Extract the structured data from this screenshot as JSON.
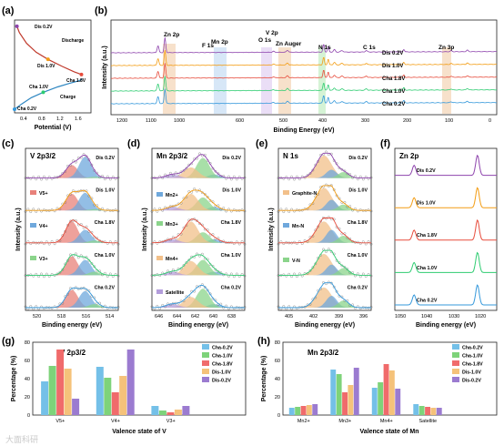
{
  "figure": {
    "panel_labels": [
      "(a)",
      "(b)",
      "(c)",
      "(d)",
      "(e)",
      "(f)",
      "(g)",
      "(h)"
    ],
    "watermark": "大面科研"
  },
  "colors": {
    "Dis 0.2V": "#8e44ad",
    "Dis 1.0V": "#f39c12",
    "Cha 1.8V": "#e74c3c",
    "Cha 1.0V": "#2ecc71",
    "Cha 0.2V": "#3498db",
    "Cha-0.2V": "#74c0e8",
    "Cha-1.0V": "#7ed37a",
    "Cha-1.8V": "#f06b6b",
    "Dis-1.0V": "#f5c27a",
    "Dis-0.2V": "#9b7bd0"
  },
  "chart_data": [
    {
      "panel": "(a)",
      "type": "line",
      "xlabel": "Potential (V)",
      "xticks": [
        "0.4",
        "0.8",
        "1.2",
        "1.6"
      ],
      "xlim": [
        0.2,
        1.8
      ],
      "annotations": [
        "Dis 0.2V",
        "Discharge",
        "Dis 1.0V",
        "Cha 1.8V",
        "Cha 1.0V",
        "Charge",
        "Cha 0.2V"
      ],
      "series": [
        {
          "name": "Discharge",
          "points": [
            [
              0.25,
              0.95
            ],
            [
              0.3,
              0.88
            ],
            [
              0.45,
              0.76
            ],
            [
              0.65,
              0.66
            ],
            [
              0.9,
              0.58
            ],
            [
              1.2,
              0.5
            ],
            [
              1.45,
              0.44
            ],
            [
              1.6,
              0.41
            ]
          ]
        },
        {
          "name": "Charge",
          "points": [
            [
              0.2,
              0.02
            ],
            [
              0.35,
              0.08
            ],
            [
              0.55,
              0.15
            ],
            [
              0.8,
              0.21
            ],
            [
              1.1,
              0.27
            ],
            [
              1.35,
              0.31
            ],
            [
              1.55,
              0.34
            ],
            [
              1.62,
              0.36
            ]
          ]
        }
      ]
    },
    {
      "panel": "(b)",
      "type": "line",
      "xlabel": "Binding Energy (eV)",
      "ylabel": "Intensity (a.u.)",
      "xticks": [
        "1200",
        "1100",
        "1000",
        "600",
        "500",
        "400",
        "300",
        "200",
        "100",
        "0"
      ],
      "peaks": [
        "Zn 2p",
        "Mn 2p",
        "F 1s",
        "O 1s",
        "V 2p",
        "Zn Auger",
        "N 1s",
        "C 1s",
        "Zn 3p"
      ],
      "series": [
        "Dis  0.2V",
        "Dis  1.0V",
        "Cha 1.8V",
        "Cha 1.0V",
        "Cha 0.2V"
      ]
    },
    {
      "panel": "(c)",
      "type": "line",
      "title": "V 2p3/2",
      "xlabel": "Binding energy (eV)",
      "ylabel": "Intensity (a.u.)",
      "xticks": [
        "520",
        "518",
        "516",
        "514"
      ],
      "xlim": [
        520.5,
        513.5
      ],
      "legend": [
        "V5+",
        "V4+",
        "V3+"
      ],
      "rows": [
        "Dis 0.2V",
        "Dis 1.0V",
        "Cha 1.8V",
        "Cha 1.0V",
        "Cha 0.2V"
      ],
      "components": [
        {
          "name": "V5+",
          "color": "#e8817a",
          "center": 517.0,
          "width": 0.65
        },
        {
          "name": "V4+",
          "color": "#6fa8dc",
          "center": 516.0,
          "width": 0.65
        },
        {
          "name": "V3+",
          "color": "#8bd48b",
          "center": 515.3,
          "width": 0.6
        }
      ],
      "amplitudes": [
        [
          0.55,
          0.9,
          0.05
        ],
        [
          0.7,
          0.75,
          0.05
        ],
        [
          0.9,
          0.55,
          0.1
        ],
        [
          0.8,
          0.65,
          0.15
        ],
        [
          0.75,
          0.7,
          0.15
        ]
      ]
    },
    {
      "panel": "(d)",
      "type": "line",
      "title": "Mn 2p3/2",
      "xlabel": "Binding energy (eV)",
      "ylabel": "Intensity (a.u.)",
      "xticks": [
        "646",
        "644",
        "642",
        "640",
        "638"
      ],
      "xlim": [
        647,
        637
      ],
      "legend": [
        "Mn2+",
        "Mn3+",
        "Mn4+",
        "Satellite"
      ],
      "rows": [
        "Dis 0.2V",
        "Dis 1.0V",
        "Cha 1.8V",
        "Cha 1.0V",
        "Cha 0.2V"
      ],
      "components": [
        {
          "name": "Mn2+",
          "color": "#6fa8dc",
          "center": 640.3,
          "width": 0.9
        },
        {
          "name": "Mn3+",
          "color": "#8bd48b",
          "center": 641.5,
          "width": 1.0
        },
        {
          "name": "Mn4+",
          "color": "#f2c08a",
          "center": 642.8,
          "width": 1.1
        },
        {
          "name": "Satellite",
          "color": "#b39ddb",
          "center": 644.8,
          "width": 1.0
        }
      ],
      "amplitudes": [
        [
          0.15,
          0.85,
          0.45,
          0.15
        ],
        [
          0.15,
          0.55,
          0.7,
          0.15
        ],
        [
          0.15,
          0.45,
          0.9,
          0.15
        ],
        [
          0.15,
          0.65,
          0.6,
          0.15
        ],
        [
          0.15,
          0.8,
          0.45,
          0.15
        ]
      ]
    },
    {
      "panel": "(e)",
      "type": "line",
      "title": "N 1s",
      "xlabel": "Binding energy (eV)",
      "ylabel": "Intensity (a.u.)",
      "xticks": [
        "405",
        "402",
        "399",
        "396"
      ],
      "xlim": [
        406,
        395
      ],
      "legend": [
        "Graphite-N",
        "Mn-N",
        "V-N"
      ],
      "rows": [
        "Dis 0.2V",
        "Dis 1.0V",
        "Cha 1.8V",
        "Cha 1.0V",
        "Cha 0.2V"
      ],
      "components": [
        {
          "name": "Graphite-N",
          "color": "#f2c08a",
          "center": 400.6,
          "width": 1.3
        },
        {
          "name": "Mn-N",
          "color": "#6fa8dc",
          "center": 399.7,
          "width": 0.9
        },
        {
          "name": "V-N",
          "color": "#8bd48b",
          "center": 398.3,
          "width": 0.9
        }
      ],
      "amplitudes": [
        [
          0.95,
          0.35,
          0.25
        ],
        [
          0.95,
          0.45,
          0.25
        ],
        [
          0.9,
          0.55,
          0.3
        ],
        [
          0.9,
          0.45,
          0.3
        ],
        [
          0.85,
          0.5,
          0.3
        ]
      ]
    },
    {
      "panel": "(f)",
      "type": "line",
      "title": "Zn 2p",
      "xlabel": "Binding energy (eV)",
      "xticks": [
        "1050",
        "1040",
        "1030",
        "1020"
      ],
      "xlim": [
        1052,
        1015
      ],
      "rows": [
        "Dis 0.2V",
        "Dis 1.0V",
        "Cha 1.8V",
        "Cha 1.0V",
        "Cha 0.2V"
      ],
      "peaks": [
        {
          "center": 1045.0,
          "amp": 0.5
        },
        {
          "center": 1022.0,
          "amp": 1.0
        }
      ]
    },
    {
      "panel": "(g)",
      "type": "bar",
      "title": "V 2p3/2",
      "xlabel": "Valence state of V",
      "ylabel": "Percentage (%)",
      "ylim": [
        0,
        80
      ],
      "yticks": [
        0,
        20,
        40,
        60,
        80
      ],
      "categories": [
        "V5+",
        "V4+",
        "V3+"
      ],
      "legend_position": "top-right",
      "series": [
        {
          "name": "Cha-0.2V",
          "values": [
            37,
            53,
            10
          ]
        },
        {
          "name": "Cha-1.0V",
          "values": [
            54,
            41,
            5
          ]
        },
        {
          "name": "Cha-1.8V",
          "values": [
            72,
            25,
            3
          ]
        },
        {
          "name": "Dis-1.0V",
          "values": [
            51,
            43,
            6
          ]
        },
        {
          "name": "Dis-0.2V",
          "values": [
            18,
            72,
            10
          ]
        }
      ]
    },
    {
      "panel": "(h)",
      "type": "bar",
      "title": "Mn 2p3/2",
      "xlabel": "Valence state of Mn",
      "ylabel": "Percentage (%)",
      "ylim": [
        0,
        80
      ],
      "yticks": [
        0,
        20,
        40,
        60,
        80
      ],
      "categories": [
        "Mn2+",
        "Mn3+",
        "Mn4+",
        "Satellite"
      ],
      "legend_position": "top-right",
      "series": [
        {
          "name": "Cha-0.2V",
          "values": [
            8,
            50,
            30,
            12
          ]
        },
        {
          "name": "Cha-1.0V",
          "values": [
            9,
            45,
            36,
            10
          ]
        },
        {
          "name": "Cha-1.8V",
          "values": [
            10,
            25,
            56,
            9
          ]
        },
        {
          "name": "Dis-1.0V",
          "values": [
            11,
            33,
            49,
            8
          ]
        },
        {
          "name": "Dis-0.2V",
          "values": [
            12,
            52,
            29,
            8
          ]
        }
      ]
    }
  ]
}
